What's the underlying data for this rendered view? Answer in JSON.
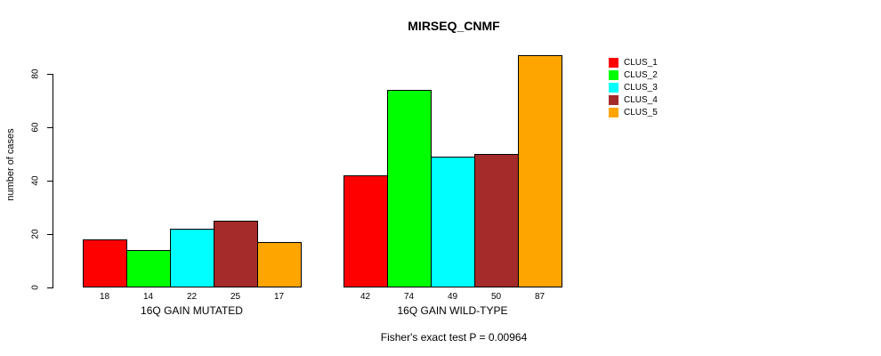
{
  "chart_data": {
    "type": "bar",
    "title": "MIRSEQ_CNMF",
    "ylabel": "number of cases",
    "xlabel": "",
    "categories": [
      "16Q GAIN MUTATED",
      "16Q GAIN WILD-TYPE"
    ],
    "series": [
      {
        "name": "CLUS_1",
        "color": "#FF0000",
        "values": [
          18,
          42
        ]
      },
      {
        "name": "CLUS_2",
        "color": "#00FF00",
        "values": [
          14,
          74
        ]
      },
      {
        "name": "CLUS_3",
        "color": "#00FFFF",
        "values": [
          22,
          49
        ]
      },
      {
        "name": "CLUS_4",
        "color": "#A52A2A",
        "values": [
          25,
          50
        ]
      },
      {
        "name": "CLUS_5",
        "color": "#FFA500",
        "values": [
          17,
          87
        ]
      }
    ],
    "bar_value_labels": [
      [
        "18",
        "14",
        "22",
        "25",
        "17"
      ],
      [
        "42",
        "74",
        "49",
        "50",
        "87"
      ]
    ],
    "yticks": [
      0,
      20,
      40,
      60,
      80
    ],
    "ylim": [
      0,
      87
    ],
    "grid": false,
    "legend_position": "right",
    "bar_border_color": "#000000",
    "annotation": "Fisher's exact test P = 0.00964"
  }
}
